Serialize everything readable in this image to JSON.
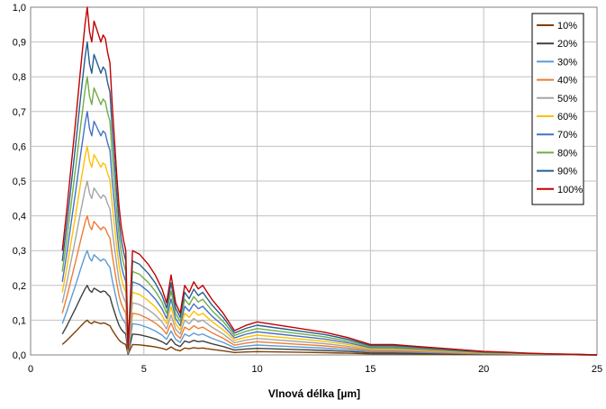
{
  "chart_data": {
    "type": "line",
    "title": "",
    "xlabel": "Vlnová délka [µm]",
    "ylabel": "",
    "xlim": [
      0,
      25
    ],
    "ylim": [
      0,
      1.0
    ],
    "x_ticks": [
      "0",
      "5",
      "10",
      "15",
      "20",
      "25"
    ],
    "y_ticks": [
      "0,0",
      "0,1",
      "0,2",
      "0,3",
      "0,4",
      "0,5",
      "0,6",
      "0,7",
      "0,8",
      "0,9",
      "1,0"
    ],
    "grid": true,
    "legend_position": "top-right",
    "base_curve_note_free": true,
    "base_curve": {
      "x": [
        1.4,
        1.6,
        1.8,
        2.0,
        2.2,
        2.4,
        2.5,
        2.6,
        2.7,
        2.8,
        2.9,
        3.0,
        3.1,
        3.2,
        3.3,
        3.4,
        3.5,
        3.6,
        3.7,
        3.8,
        3.9,
        4.0,
        4.1,
        4.2,
        4.3,
        4.5,
        4.8,
        5.2,
        5.5,
        5.8,
        6.0,
        6.2,
        6.4,
        6.6,
        6.8,
        7.0,
        7.2,
        7.4,
        7.6,
        7.8,
        8.0,
        8.5,
        9.0,
        9.5,
        10.0,
        11.0,
        12.0,
        13.0,
        14.0,
        15.0,
        16.0,
        17.0,
        18.0,
        19.0,
        20.0,
        21.0,
        22.0,
        23.0,
        24.0,
        25.0
      ],
      "y": [
        0.3,
        0.42,
        0.55,
        0.68,
        0.82,
        0.95,
        1.0,
        0.93,
        0.9,
        0.96,
        0.94,
        0.92,
        0.9,
        0.92,
        0.91,
        0.87,
        0.84,
        0.72,
        0.62,
        0.52,
        0.43,
        0.37,
        0.33,
        0.3,
        0.02,
        0.3,
        0.29,
        0.26,
        0.23,
        0.19,
        0.15,
        0.23,
        0.15,
        0.12,
        0.2,
        0.18,
        0.21,
        0.19,
        0.2,
        0.18,
        0.16,
        0.12,
        0.07,
        0.085,
        0.095,
        0.085,
        0.075,
        0.065,
        0.05,
        0.03,
        0.03,
        0.025,
        0.02,
        0.015,
        0.01,
        0.008,
        0.005,
        0.003,
        0.002,
        0.0
      ]
    },
    "series": [
      {
        "name": "10%",
        "color": "#7f3f00",
        "scale": 0.1
      },
      {
        "name": "20%",
        "color": "#404040",
        "scale": 0.2
      },
      {
        "name": "30%",
        "color": "#5b9bd5",
        "scale": 0.3
      },
      {
        "name": "40%",
        "color": "#ed7d31",
        "scale": 0.4
      },
      {
        "name": "50%",
        "color": "#a5a5a5",
        "scale": 0.5
      },
      {
        "name": "60%",
        "color": "#ffc000",
        "scale": 0.6
      },
      {
        "name": "70%",
        "color": "#4472c4",
        "scale": 0.7
      },
      {
        "name": "80%",
        "color": "#70ad47",
        "scale": 0.8
      },
      {
        "name": "90%",
        "color": "#255e91",
        "scale": 0.9
      },
      {
        "name": "100%",
        "color": "#c00000",
        "scale": 1.0
      }
    ]
  }
}
